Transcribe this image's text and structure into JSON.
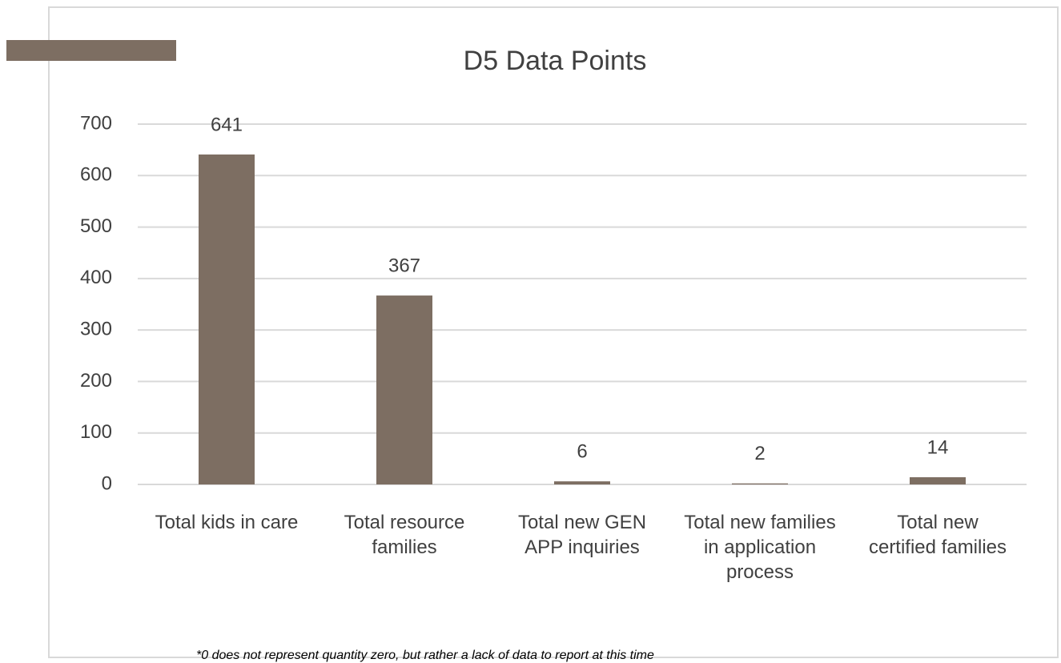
{
  "chart_data": {
    "type": "bar",
    "title": "D5 Data Points",
    "categories": [
      "Total kids in care",
      "Total resource families",
      "Total new GEN APP inquiries",
      "Total new families in application process",
      "Total new certified families"
    ],
    "values": [
      641,
      367,
      6,
      2,
      14
    ],
    "color": "#7d6e62",
    "ylim": [
      0,
      700
    ],
    "yticks": [
      0,
      100,
      200,
      300,
      400,
      500,
      600,
      700
    ],
    "grid": true,
    "footnote": "*0 does not represent quantity zero, but rather a lack of data to report at this time"
  }
}
